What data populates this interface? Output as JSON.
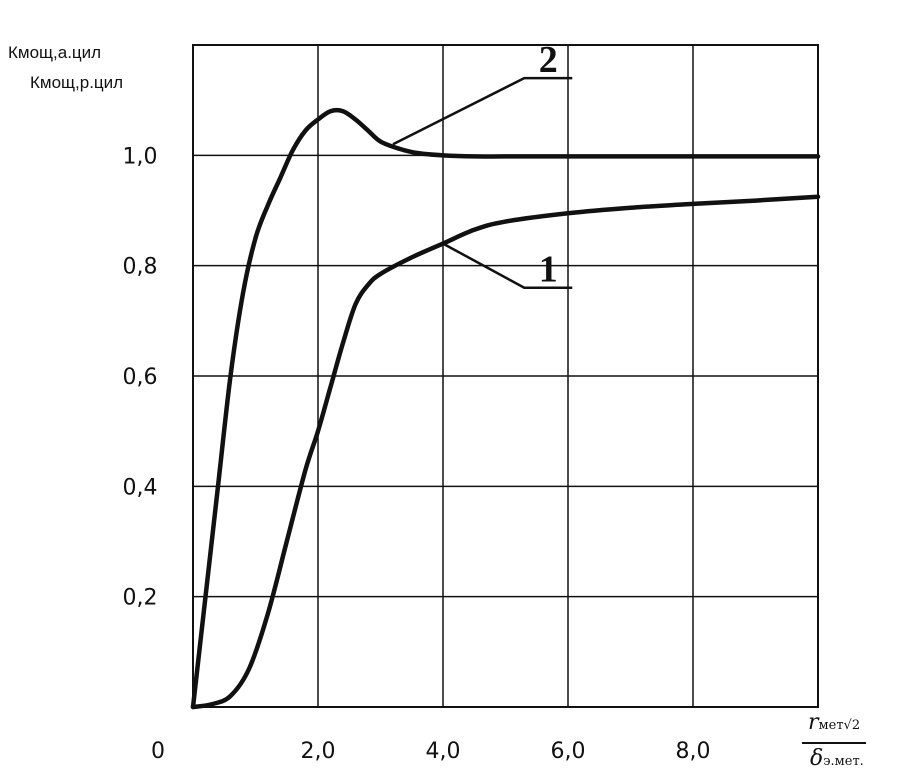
{
  "chart_data": {
    "type": "line",
    "ylabel_lines": [
      "Кмощ,а.цил",
      "Кмощ,р.цил"
    ],
    "xlabel": {
      "numerator_symbol": "r",
      "numerator_sub": "мет",
      "numerator_root": "√2",
      "denominator_symbol": "δ",
      "denominator_sub": "э.мет."
    },
    "xlim": [
      0,
      10
    ],
    "ylim": [
      0,
      1.2
    ],
    "x_ticks": [
      {
        "value": 0,
        "label": "0"
      },
      {
        "value": 2,
        "label": "2,0"
      },
      {
        "value": 4,
        "label": "4,0"
      },
      {
        "value": 6,
        "label": "6,0"
      },
      {
        "value": 8,
        "label": "8,0"
      }
    ],
    "y_ticks": [
      {
        "value": 0.2,
        "label": "0,2"
      },
      {
        "value": 0.4,
        "label": "0,4"
      },
      {
        "value": 0.6,
        "label": "0,6"
      },
      {
        "value": 0.8,
        "label": "0,8"
      },
      {
        "value": 1.0,
        "label": "1,0"
      }
    ],
    "grid": true,
    "series": [
      {
        "marker_label": "1",
        "x": [
          0,
          0.3,
          0.6,
          0.9,
          1.2,
          1.5,
          1.8,
          2.0,
          2.2,
          2.4,
          2.6,
          2.8,
          3.0,
          3.5,
          4.0,
          4.5,
          5.0,
          6.0,
          7.0,
          8.0,
          9.0,
          10.0
        ],
        "y": [
          0,
          0.005,
          0.02,
          0.07,
          0.17,
          0.3,
          0.43,
          0.5,
          0.58,
          0.66,
          0.73,
          0.765,
          0.785,
          0.815,
          0.84,
          0.865,
          0.88,
          0.895,
          0.905,
          0.912,
          0.918,
          0.925
        ]
      },
      {
        "marker_label": "2",
        "x": [
          0,
          0.2,
          0.4,
          0.6,
          0.8,
          1.0,
          1.2,
          1.4,
          1.6,
          1.8,
          2.0,
          2.2,
          2.4,
          2.6,
          2.8,
          3.0,
          3.3,
          3.6,
          4.0,
          4.5,
          5.0,
          6.0,
          8.0,
          10.0
        ],
        "y": [
          0,
          0.2,
          0.4,
          0.6,
          0.75,
          0.85,
          0.91,
          0.96,
          1.01,
          1.045,
          1.065,
          1.08,
          1.08,
          1.065,
          1.045,
          1.025,
          1.012,
          1.004,
          1.0,
          0.998,
          0.998,
          0.998,
          0.998,
          0.998
        ]
      }
    ],
    "annotations": [
      {
        "text": "1",
        "series": 0,
        "at_x": 4.0,
        "at_y": 0.84,
        "label_x": 5.3,
        "label_y": 0.76
      },
      {
        "text": "2",
        "series": 1,
        "at_x": 3.2,
        "at_y": 1.02,
        "label_x": 5.3,
        "label_y": 1.14
      }
    ]
  }
}
